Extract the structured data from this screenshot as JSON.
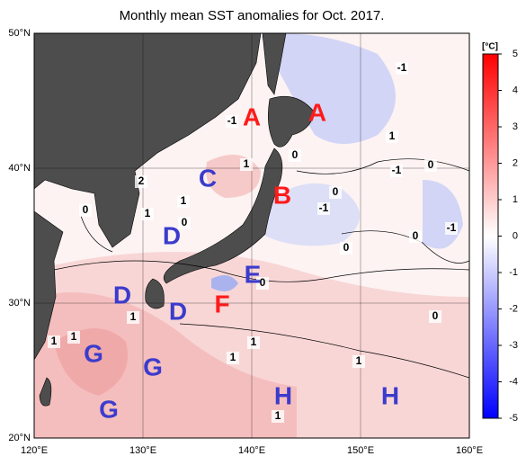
{
  "title": "Monthly mean SST anomalies for Oct. 2017.",
  "lon_ticks": [
    {
      "value": 120,
      "label": "120°E"
    },
    {
      "value": 130,
      "label": "130°E"
    },
    {
      "value": 140,
      "label": "140°E"
    },
    {
      "value": 150,
      "label": "150°E"
    },
    {
      "value": 160,
      "label": "160°E"
    }
  ],
  "lat_ticks": [
    {
      "value": 20,
      "label": "20°N"
    },
    {
      "value": 30,
      "label": "30°N"
    },
    {
      "value": 40,
      "label": "40°N"
    },
    {
      "value": 50,
      "label": "50°N"
    }
  ],
  "colorbar": {
    "unit": "[°C]",
    "range": [
      -5,
      5
    ],
    "ticks": [
      5,
      4,
      3,
      2,
      1,
      0,
      -1,
      -2,
      -3,
      -4,
      -5
    ]
  },
  "regions": [
    {
      "label": "A",
      "color": "#ff1a1a"
    },
    {
      "label": "A",
      "color": "#ff1a1a"
    },
    {
      "label": "B",
      "color": "#ff1a1a"
    },
    {
      "label": "F",
      "color": "#ff1a1a"
    },
    {
      "label": "C",
      "color": "#3b3bcc"
    },
    {
      "label": "D",
      "color": "#3b3bcc"
    },
    {
      "label": "D",
      "color": "#3b3bcc"
    },
    {
      "label": "D",
      "color": "#3b3bcc"
    },
    {
      "label": "E",
      "color": "#3b3bcc"
    },
    {
      "label": "G",
      "color": "#3b3bcc"
    },
    {
      "label": "G",
      "color": "#3b3bcc"
    },
    {
      "label": "G",
      "color": "#3b3bcc"
    },
    {
      "label": "H",
      "color": "#3b3bcc"
    },
    {
      "label": "H",
      "color": "#3b3bcc"
    }
  ],
  "contour_labels": [
    "-1",
    "1",
    "0",
    "2",
    "1",
    "1",
    "0",
    "0",
    "0",
    "-1",
    "-1",
    "0",
    "1",
    "-1",
    "0",
    "0",
    "-1",
    "0",
    "0",
    "1",
    "1",
    "1",
    "1",
    "1",
    "1",
    "1"
  ]
}
